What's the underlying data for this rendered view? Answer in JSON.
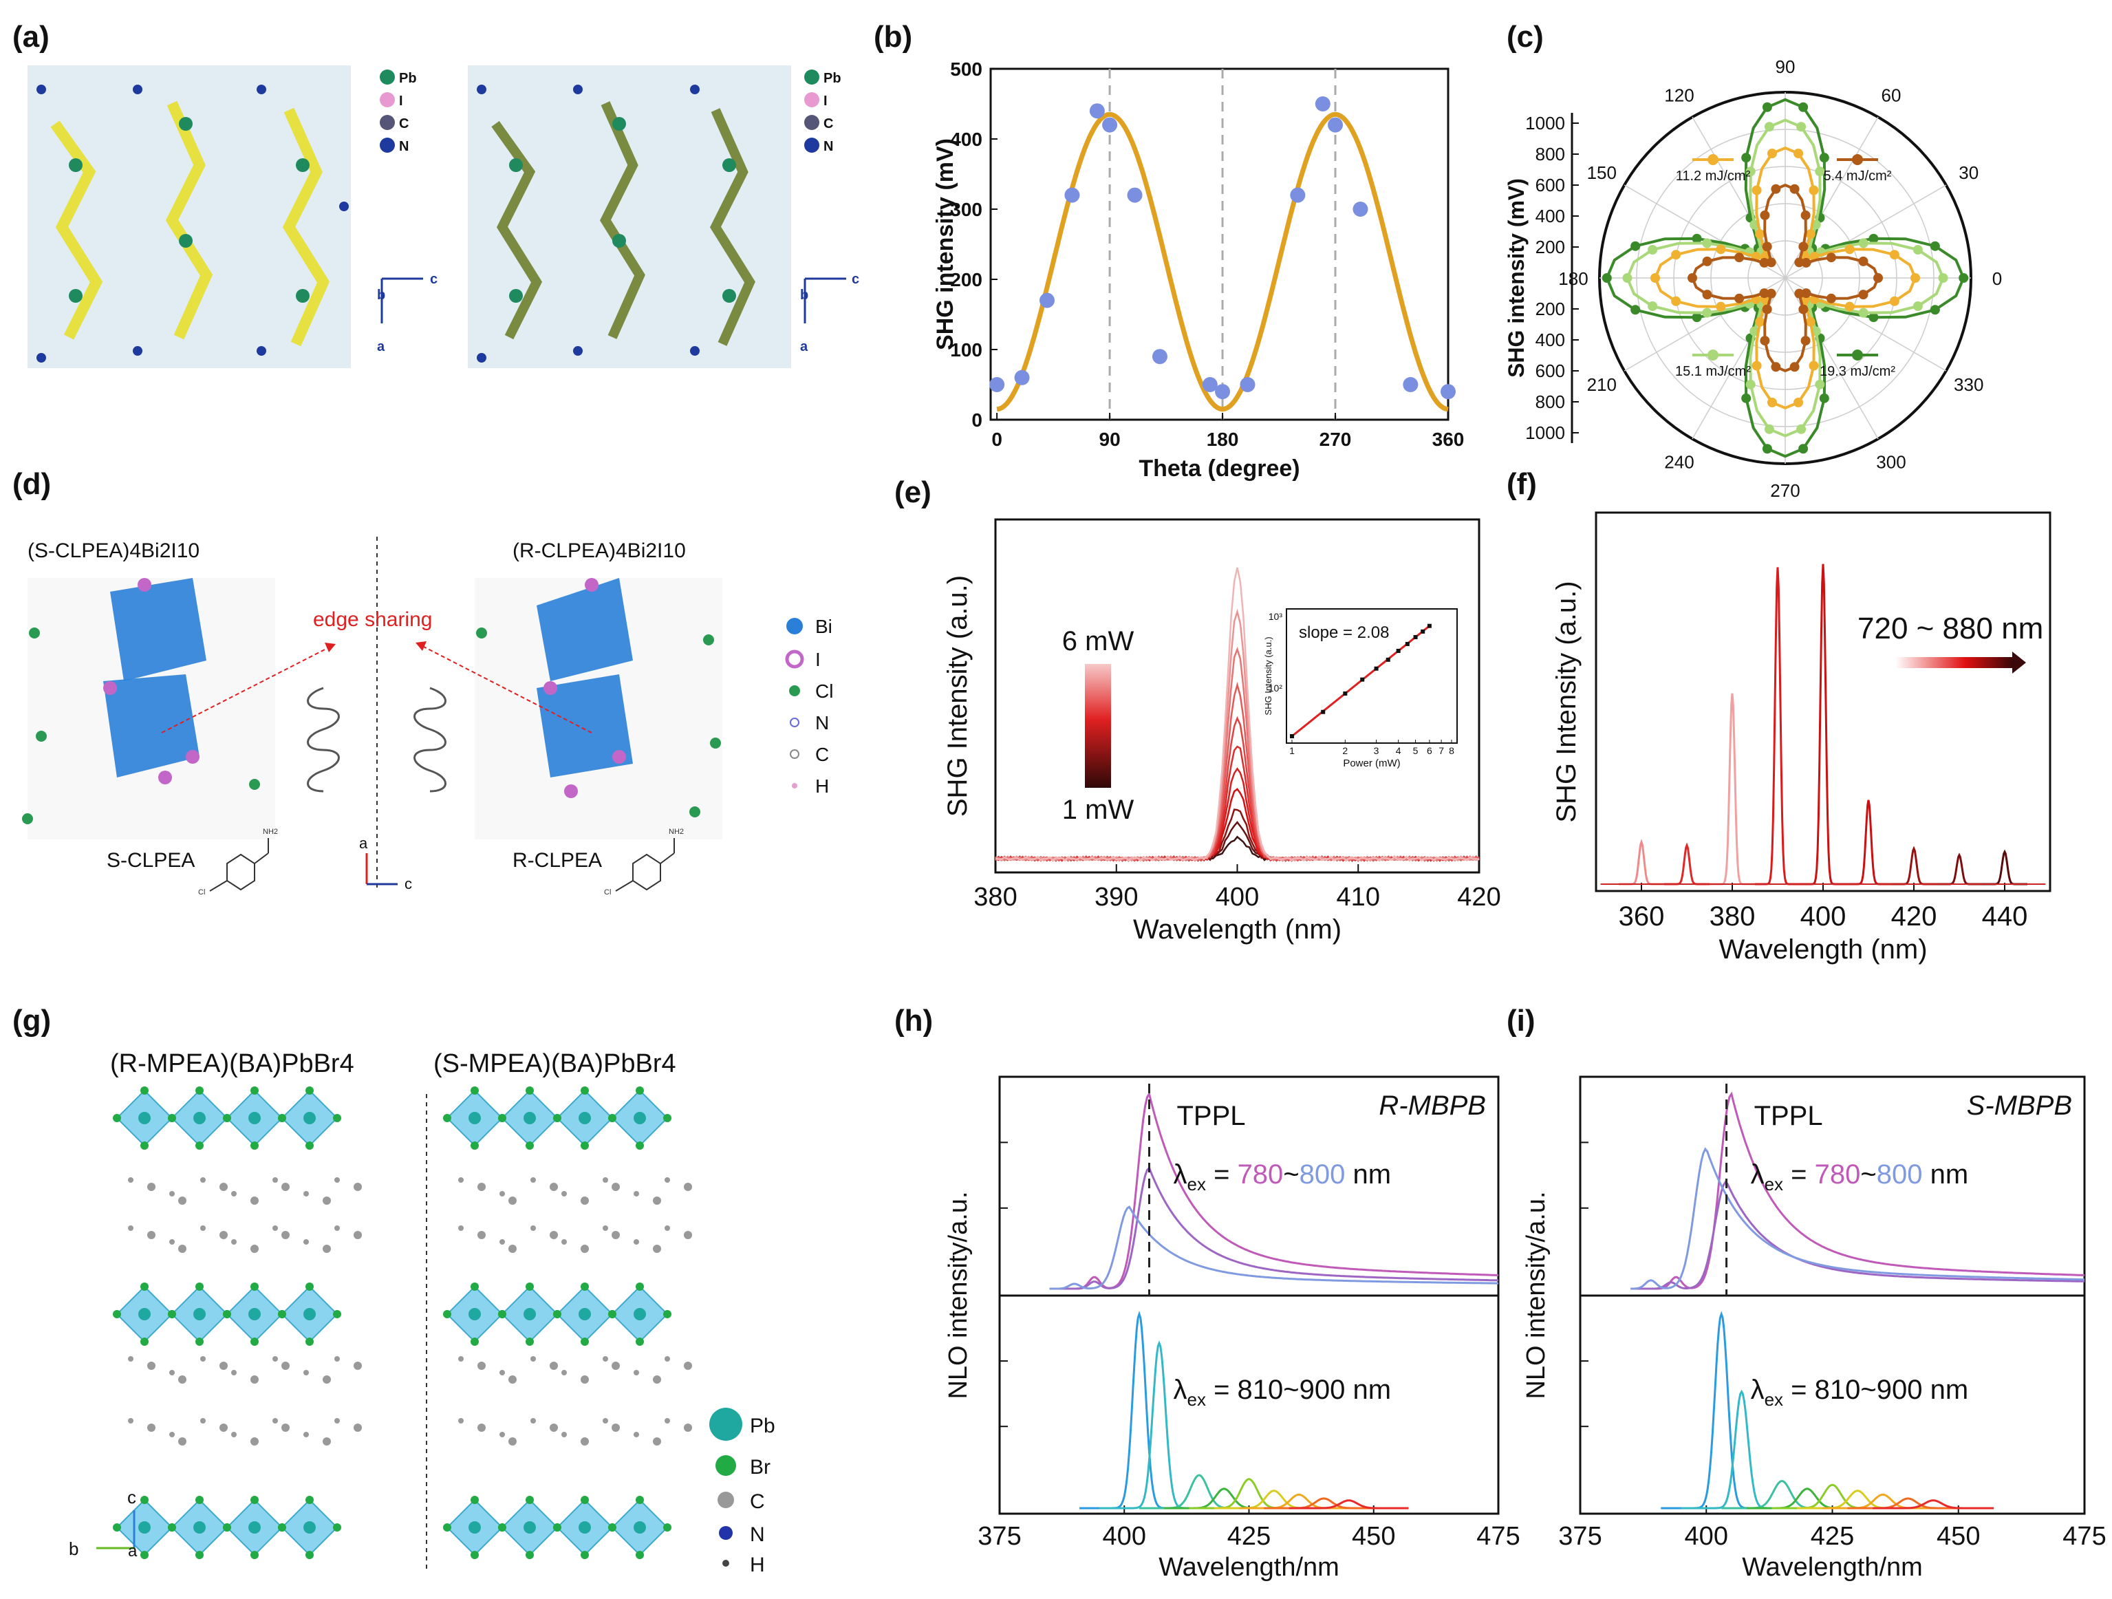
{
  "panels": {
    "a": {
      "label": "(a)",
      "legend": [
        "Pb",
        "I",
        "C",
        "N"
      ],
      "legend_colors": [
        "#1f8a5e",
        "#e89ad0",
        "#555577",
        "#1f3a9e"
      ],
      "axes": {
        "c": "c",
        "b": "b",
        "a": "a"
      }
    },
    "b": {
      "label": "(b)"
    },
    "c": {
      "label": "(c)"
    },
    "d": {
      "label": "(d)",
      "title_left": "(S-CLPEA)4Bi2I10",
      "title_right": "(R-CLPEA)4Bi2I10",
      "edge": "edge sharing",
      "legend": [
        "Bi",
        "I",
        "Cl",
        "N",
        "C",
        "H"
      ],
      "legend_colors": [
        "#2a7fd8",
        "#c266c8",
        "#2a9a52",
        "#6a6ad8",
        "#888888",
        "#e6a0d0"
      ],
      "ligand_left": "S-CLPEA",
      "ligand_right": "R-CLPEA",
      "nh2": "NH2",
      "cl": "Cl",
      "axis_a": "a",
      "axis_c": "c"
    },
    "e": {
      "label": "(e)",
      "power_high": "6 mW",
      "power_low": "1 mW"
    },
    "f": {
      "label": "(f)",
      "range_label": "720 ~ 880 nm"
    },
    "g": {
      "label": "(g)",
      "title_left": "(R-MPEA)(BA)PbBr4",
      "title_right": "(S-MPEA)(BA)PbBr4",
      "legend": [
        "Pb",
        "Br",
        "C",
        "N",
        "H"
      ],
      "legend_colors": [
        "#1fa8a0",
        "#22aa44",
        "#999999",
        "#2233aa",
        "#444444"
      ],
      "axis_c": "c",
      "axis_b": "b",
      "axis_a": "a"
    },
    "h": {
      "label": "(h)",
      "tag": "R-MBPB"
    },
    "i": {
      "label": "(i)",
      "tag": "S-MBPB"
    }
  },
  "chart_data": [
    {
      "id": "b",
      "type": "scatter",
      "title": "",
      "xlabel": "Theta (degree)",
      "ylabel": "SHG intensity (mV)",
      "xlim": [
        -5,
        360
      ],
      "ylim": [
        0,
        500
      ],
      "xticks": [
        0,
        90,
        180,
        270,
        360
      ],
      "yticks": [
        0,
        100,
        200,
        300,
        400,
        500
      ],
      "series": [
        {
          "name": "data",
          "color": "#7b8fe0",
          "x": [
            0,
            20,
            40,
            60,
            80,
            90,
            110,
            130,
            170,
            180,
            200,
            240,
            260,
            270,
            290,
            330,
            360
          ],
          "y": [
            50,
            60,
            170,
            320,
            440,
            420,
            320,
            90,
            50,
            40,
            50,
            320,
            450,
            420,
            300,
            50,
            40
          ]
        },
        {
          "name": "fit",
          "color": "#e0a020",
          "model": "cos2",
          "amplitude": 420,
          "offset": 15,
          "peaks": [
            90,
            270
          ]
        }
      ]
    },
    {
      "id": "c",
      "type": "polar",
      "ylabel": "SHG intensity (mV)",
      "rlim": [
        0,
        1000
      ],
      "rticks": [
        200,
        400,
        600,
        800,
        1000
      ],
      "angle_ticks": [
        0,
        30,
        60,
        90,
        120,
        150,
        180,
        210,
        240,
        270,
        300,
        330
      ],
      "series": [
        {
          "name": "5.4 mJ/cm2",
          "label": "5.4 mJ/cm²",
          "color": "#b05a18",
          "peak": 500
        },
        {
          "name": "11.2 mJ/cm2",
          "label": "11.2 mJ/cm²",
          "color": "#f0b030",
          "peak": 700
        },
        {
          "name": "15.1 mJ/cm2",
          "label": "15.1 mJ/cm²",
          "color": "#a8d878",
          "peak": 850
        },
        {
          "name": "19.3 mJ/cm2",
          "label": "19.3 mJ/cm²",
          "color": "#3a8a2a",
          "peak": 960
        }
      ]
    },
    {
      "id": "e",
      "type": "line",
      "xlabel": "Wavelength (nm)",
      "ylabel": "SHG Intensity (a.u.)",
      "xlim": [
        380,
        420
      ],
      "xticks": [
        380,
        390,
        400,
        410,
        420
      ],
      "peak_x": 400,
      "series_powers_mW": [
        1,
        1.5,
        2,
        2.5,
        3,
        3.5,
        4,
        4.5,
        5,
        5.5,
        6
      ],
      "series_peaks": [
        0.07,
        0.12,
        0.17,
        0.24,
        0.31,
        0.39,
        0.48,
        0.59,
        0.72,
        0.85,
        1.0
      ],
      "inset": {
        "type": "scatter",
        "xlabel": "Power (mW)",
        "ylabel": "SHG Intensity (a.u.)",
        "annotation": "slope = 2.08",
        "xticks": [
          1,
          2,
          3,
          4,
          5,
          6,
          7,
          8
        ],
        "yticks_label": [
          "10²",
          "10³"
        ],
        "x": [
          1,
          1.5,
          2,
          2.5,
          3,
          3.5,
          4,
          4.5,
          5,
          5.5,
          6
        ],
        "y": [
          1,
          2.2,
          4,
          6.3,
          9,
          12,
          16,
          20,
          25,
          30,
          36
        ]
      }
    },
    {
      "id": "f",
      "type": "line",
      "xlabel": "Wavelength (nm)",
      "ylabel": "SHG Intensity (a.u.)",
      "xlim": [
        350,
        450
      ],
      "xticks": [
        360,
        380,
        400,
        420,
        440
      ],
      "peaks_x": [
        360,
        370,
        380,
        390,
        400,
        410,
        420,
        430,
        440
      ],
      "peaks_y": [
        0.13,
        0.12,
        0.59,
        0.98,
        0.99,
        0.26,
        0.11,
        0.09,
        0.1
      ],
      "colors": [
        "#f08a8a",
        "#e02828",
        "#f0a0a0",
        "#dd1a1a",
        "#cc1111",
        "#cc1010",
        "#991010",
        "#7a0e0e",
        "#5a0a0a"
      ]
    },
    {
      "id": "h",
      "type": "line",
      "xlabel": "Wavelength/nm",
      "ylabel": "NLO intensity/a.u.",
      "xlim": [
        375,
        475
      ],
      "xticks": [
        375,
        400,
        425,
        450,
        475
      ],
      "tppl_x": 405,
      "upper_label": "TPPL",
      "upper_lambda_sym": "λ",
      "upper_lambda_sub": "ex",
      "upper_eq": " = ",
      "upper_range_a": "780",
      "upper_tilde": "~",
      "upper_range_b": "800",
      "upper_unit": " nm",
      "lower_lambda_sym": "λ",
      "lower_lambda_sub": "ex",
      "lower_text": " = 810~900 nm",
      "upper_series": [
        {
          "name": "780",
          "color": "#c05ab8",
          "peak_x": 405,
          "amp": 1.0
        },
        {
          "name": "790",
          "color": "#9e66c4",
          "peak_x": 405,
          "amp": 0.62
        },
        {
          "name": "800",
          "color": "#7f9ae0",
          "peak_x": 401,
          "amp": 0.42
        }
      ],
      "lower_peaks": [
        {
          "x": 403,
          "y": 1.0,
          "color": "#2b9be0"
        },
        {
          "x": 407,
          "y": 0.85,
          "color": "#33b8c6"
        },
        {
          "x": 415,
          "y": 0.17,
          "color": "#3cc0a0"
        },
        {
          "x": 420,
          "y": 0.1,
          "color": "#3cb43c"
        },
        {
          "x": 425,
          "y": 0.15,
          "color": "#8ccc28"
        },
        {
          "x": 430,
          "y": 0.09,
          "color": "#d8cc20"
        },
        {
          "x": 435,
          "y": 0.07,
          "color": "#f0a820"
        },
        {
          "x": 440,
          "y": 0.05,
          "color": "#f06a20"
        },
        {
          "x": 445,
          "y": 0.04,
          "color": "#e82a2a"
        }
      ]
    },
    {
      "id": "i",
      "type": "line",
      "xlabel": "Wavelength/nm",
      "ylabel": "NLO intensity/a.u.",
      "xlim": [
        375,
        475
      ],
      "xticks": [
        375,
        400,
        425,
        450,
        475
      ],
      "tppl_x": 404,
      "upper_label": "TPPL",
      "upper_lambda_sym": "λ",
      "upper_lambda_sub": "ex",
      "upper_eq": " = ",
      "upper_range_a": "780",
      "upper_tilde": "~",
      "upper_range_b": "800",
      "upper_unit": " nm",
      "lower_lambda_sym": "λ",
      "lower_lambda_sub": "ex",
      "lower_text": " = 810~900 nm",
      "upper_series": [
        {
          "name": "780",
          "color": "#c05ab8",
          "peak_x": 405,
          "amp": 1.0
        },
        {
          "name": "790",
          "color": "#9e66c4",
          "peak_x": 404,
          "amp": 0.55
        },
        {
          "name": "800",
          "color": "#7f9ae0",
          "peak_x": 400,
          "amp": 0.72
        }
      ],
      "lower_peaks": [
        {
          "x": 403,
          "y": 1.0,
          "color": "#2b9be0"
        },
        {
          "x": 407,
          "y": 0.6,
          "color": "#33b8c6"
        },
        {
          "x": 415,
          "y": 0.14,
          "color": "#3cc0a0"
        },
        {
          "x": 420,
          "y": 0.1,
          "color": "#3cb43c"
        },
        {
          "x": 425,
          "y": 0.12,
          "color": "#8ccc28"
        },
        {
          "x": 430,
          "y": 0.09,
          "color": "#d8cc20"
        },
        {
          "x": 435,
          "y": 0.07,
          "color": "#f0a820"
        },
        {
          "x": 440,
          "y": 0.05,
          "color": "#f06a20"
        },
        {
          "x": 445,
          "y": 0.04,
          "color": "#e82a2a"
        }
      ]
    }
  ]
}
